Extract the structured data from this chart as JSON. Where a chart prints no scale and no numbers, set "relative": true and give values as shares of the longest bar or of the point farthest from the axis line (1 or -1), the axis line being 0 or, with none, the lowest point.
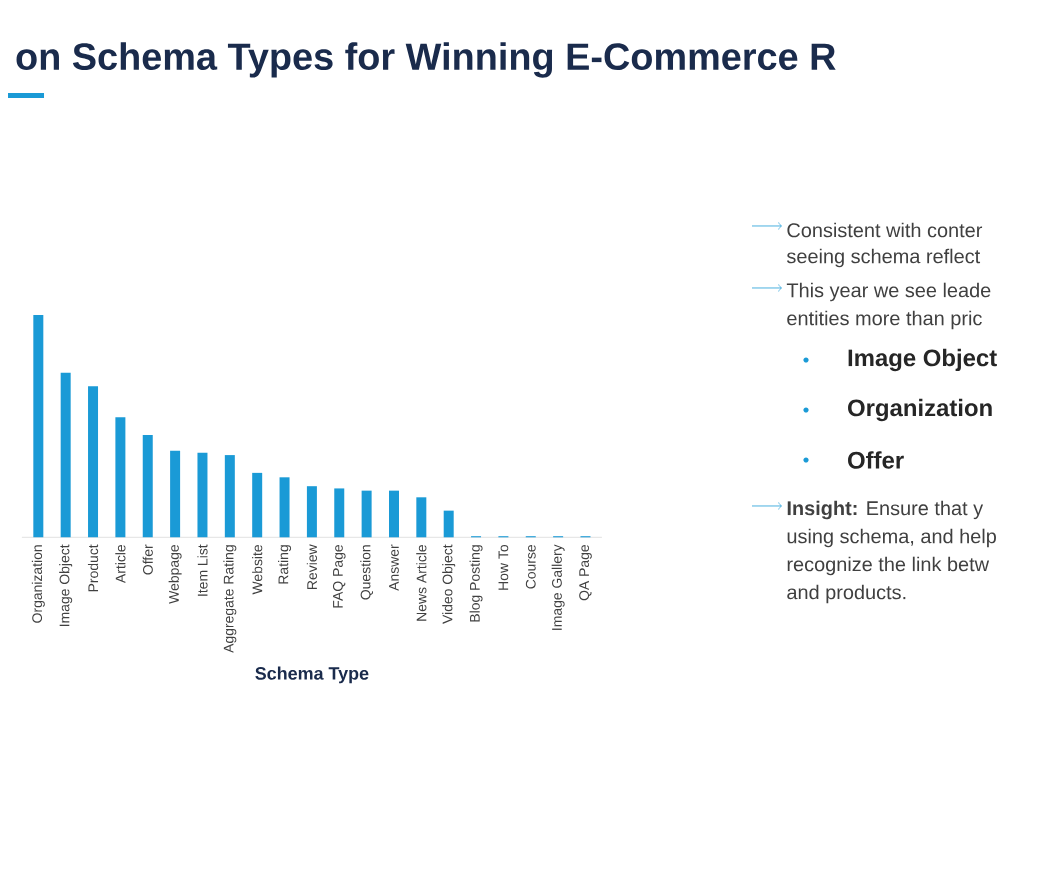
{
  "chart_data": {
    "type": "bar",
    "relative": true,
    "title": "on Schema Types for Winning E-Commerce R",
    "xlabel": "Schema Type",
    "categories": [
      "Organization",
      "Image Object",
      "Product",
      "Article",
      "Offer",
      "Webpage",
      "Item List",
      "Aggregate Rating",
      "Website",
      "Rating",
      "Review",
      "FAQ Page",
      "Question",
      "Answer",
      "News Article",
      "Video Object",
      "Blog Posting",
      "How To",
      "Course",
      "Image Gallery",
      "QA Page"
    ],
    "values": [
      1.0,
      0.74,
      0.68,
      0.54,
      0.46,
      0.39,
      0.38,
      0.37,
      0.29,
      0.27,
      0.23,
      0.22,
      0.21,
      0.21,
      0.18,
      0.12,
      0.005,
      0.005,
      0.005,
      0.005,
      0.005
    ],
    "color": "#1a9ad6",
    "annotations": [
      "Consistent with conter",
      "seeing schema reflect",
      "This year we see leade",
      "entities more than pric",
      "Image Object",
      "Organization",
      "Offer",
      "**Insight:** Ensure that y",
      "using schema, and help",
      "recognize the link betw",
      "and products."
    ]
  }
}
